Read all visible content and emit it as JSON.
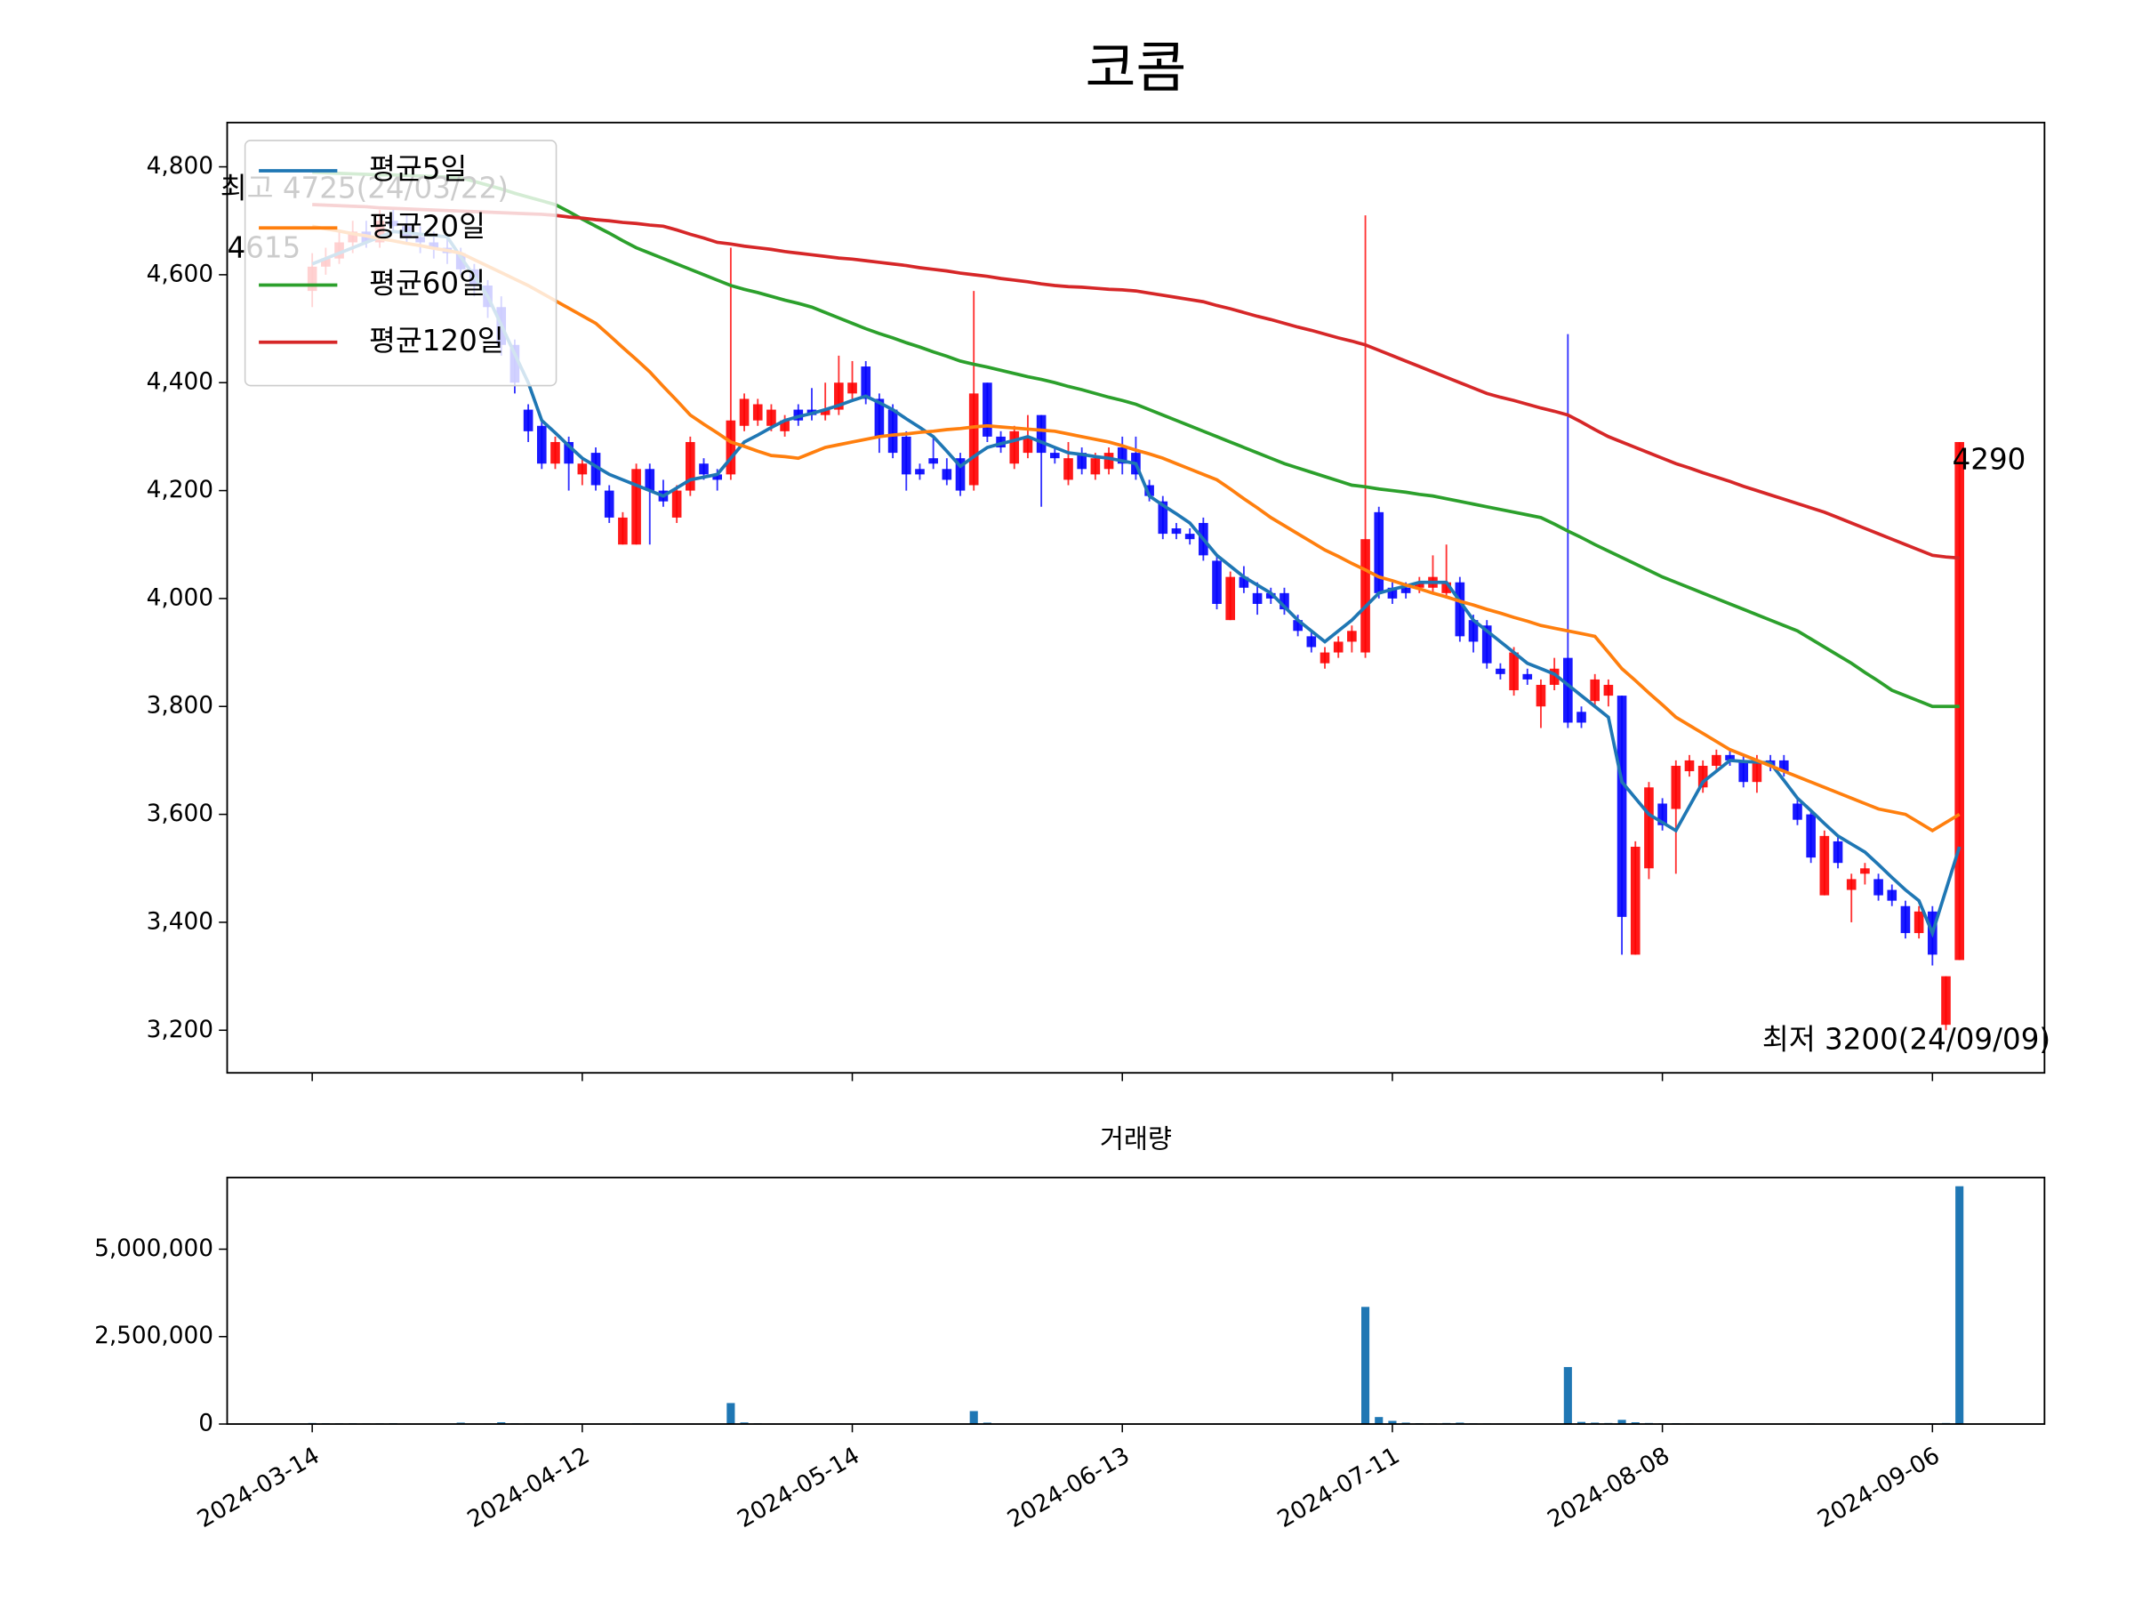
{
  "chart_data": {
    "type": "candlestick",
    "title": "코콤",
    "up_color": "#ff0000",
    "down_color": "#0000ff",
    "categories": [
      "2024-03-14",
      null,
      null,
      null,
      null,
      null,
      null,
      null,
      null,
      null,
      null,
      null,
      null,
      null,
      null,
      null,
      null,
      null,
      null,
      null,
      "2024-04-12",
      null,
      null,
      null,
      null,
      null,
      null,
      null,
      null,
      null,
      null,
      null,
      null,
      null,
      null,
      null,
      null,
      null,
      null,
      null,
      "2024-05-14",
      null,
      null,
      null,
      null,
      null,
      null,
      null,
      null,
      null,
      null,
      null,
      null,
      null,
      null,
      null,
      null,
      null,
      null,
      null,
      "2024-06-13",
      null,
      null,
      null,
      null,
      null,
      null,
      null,
      null,
      null,
      null,
      null,
      null,
      null,
      null,
      null,
      null,
      null,
      null,
      null,
      "2024-07-11",
      null,
      null,
      null,
      null,
      null,
      null,
      null,
      null,
      null,
      null,
      null,
      null,
      null,
      null,
      null,
      null,
      null,
      null,
      null,
      "2024-08-08",
      null,
      null,
      null,
      null,
      null,
      null,
      null,
      null,
      null,
      null,
      null,
      null,
      null,
      null,
      null,
      null,
      null,
      null,
      null,
      "2024-09-06",
      null,
      null
    ],
    "open": [
      4570,
      4615,
      4630,
      4660,
      4680,
      4660,
      4700,
      4690,
      4670,
      4660,
      4650,
      4640,
      4610,
      4580,
      4540,
      4470,
      4350,
      4320,
      4250,
      4290,
      4230,
      4270,
      4200,
      4100,
      4100,
      4240,
      4200,
      4150,
      4200,
      4250,
      4230,
      4230,
      4320,
      4330,
      4320,
      4310,
      4350,
      4350,
      4340,
      4350,
      4380,
      4430,
      4370,
      4350,
      4300,
      4240,
      4260,
      4240,
      4260,
      4210,
      4400,
      4300,
      4250,
      4270,
      4340,
      4270,
      4220,
      4270,
      4230,
      4240,
      4280,
      4270,
      4210,
      4180,
      4130,
      4120,
      4140,
      4070,
      3960,
      4040,
      4010,
      4010,
      4010,
      3960,
      3930,
      3880,
      3900,
      3920,
      3900,
      4160,
      4020,
      4020,
      4020,
      4020,
      4010,
      4030,
      3960,
      3950,
      3870,
      3830,
      3860,
      3800,
      3840,
      3890,
      3790,
      3810,
      3820,
      3820,
      3340,
      3500,
      3620,
      3610,
      3680,
      3650,
      3690,
      3710,
      3700,
      3660,
      3700,
      3700,
      3620,
      3600,
      3450,
      3550,
      3460,
      3490,
      3480,
      3460,
      3430,
      3380,
      3420,
      3210,
      3330
    ],
    "high": [
      4640,
      4650,
      4680,
      4700,
      4700,
      4720,
      4725,
      4710,
      4690,
      4680,
      4670,
      4650,
      4620,
      4590,
      4560,
      4480,
      4360,
      4330,
      4300,
      4300,
      4260,
      4280,
      4210,
      4160,
      4250,
      4250,
      4220,
      4210,
      4300,
      4260,
      4240,
      4650,
      4380,
      4370,
      4360,
      4340,
      4360,
      4390,
      4400,
      4450,
      4440,
      4440,
      4380,
      4360,
      4310,
      4250,
      4300,
      4260,
      4270,
      4570,
      4400,
      4310,
      4320,
      4340,
      4340,
      4280,
      4290,
      4280,
      4270,
      4280,
      4300,
      4300,
      4220,
      4190,
      4140,
      4130,
      4150,
      4080,
      4050,
      4060,
      4030,
      4020,
      4020,
      3970,
      3940,
      3910,
      3930,
      3950,
      4710,
      4170,
      4030,
      4030,
      4040,
      4080,
      4100,
      4040,
      3970,
      3960,
      3880,
      3910,
      3870,
      3850,
      3890,
      4490,
      3800,
      3860,
      3850,
      3820,
      3550,
      3660,
      3630,
      3700,
      3710,
      3700,
      3720,
      3720,
      3710,
      3710,
      3710,
      3710,
      3630,
      3610,
      3570,
      3560,
      3490,
      3510,
      3490,
      3470,
      3440,
      3430,
      3430,
      3300,
      4290
    ],
    "low": [
      4540,
      4600,
      4620,
      4640,
      4650,
      4650,
      4680,
      4660,
      4640,
      4630,
      4620,
      4600,
      4560,
      4520,
      4450,
      4380,
      4290,
      4240,
      4240,
      4200,
      4210,
      4200,
      4140,
      4100,
      4100,
      4100,
      4170,
      4140,
      4190,
      4220,
      4200,
      4220,
      4310,
      4320,
      4310,
      4300,
      4320,
      4330,
      4330,
      4340,
      4370,
      4360,
      4270,
      4260,
      4200,
      4220,
      4240,
      4210,
      4190,
      4200,
      4290,
      4270,
      4240,
      4260,
      4170,
      4250,
      4210,
      4230,
      4220,
      4230,
      4230,
      4220,
      4180,
      4110,
      4110,
      4100,
      4070,
      3980,
      3960,
      4010,
      3970,
      3990,
      3970,
      3930,
      3900,
      3870,
      3890,
      3900,
      3890,
      4000,
      3990,
      4000,
      4010,
      4010,
      4000,
      3920,
      3900,
      3870,
      3850,
      3820,
      3840,
      3760,
      3830,
      3760,
      3760,
      3800,
      3800,
      3340,
      3340,
      3480,
      3570,
      3490,
      3670,
      3640,
      3680,
      3690,
      3650,
      3640,
      3680,
      3670,
      3580,
      3510,
      3450,
      3500,
      3400,
      3470,
      3440,
      3430,
      3370,
      3370,
      3320,
      3200,
      3330
    ],
    "close": [
      4615,
      4630,
      4660,
      4680,
      4660,
      4700,
      4690,
      4670,
      4660,
      4650,
      4640,
      4610,
      4580,
      4540,
      4470,
      4400,
      4310,
      4250,
      4290,
      4250,
      4250,
      4210,
      4150,
      4150,
      4240,
      4200,
      4180,
      4200,
      4290,
      4230,
      4220,
      4330,
      4370,
      4360,
      4350,
      4330,
      4330,
      4340,
      4350,
      4400,
      4400,
      4370,
      4300,
      4270,
      4230,
      4230,
      4250,
      4220,
      4200,
      4380,
      4300,
      4280,
      4310,
      4300,
      4270,
      4260,
      4260,
      4240,
      4260,
      4270,
      4250,
      4230,
      4190,
      4120,
      4120,
      4110,
      4080,
      3990,
      4040,
      4020,
      3990,
      4000,
      3980,
      3940,
      3910,
      3900,
      3920,
      3940,
      4110,
      4010,
      4000,
      4010,
      4030,
      4040,
      4030,
      3930,
      3920,
      3880,
      3860,
      3900,
      3850,
      3840,
      3870,
      3770,
      3770,
      3850,
      3840,
      3410,
      3540,
      3650,
      3580,
      3690,
      3700,
      3690,
      3710,
      3700,
      3660,
      3700,
      3690,
      3680,
      3590,
      3520,
      3560,
      3510,
      3480,
      3500,
      3450,
      3440,
      3380,
      3420,
      3340,
      3300,
      4290
    ],
    "series": [
      {
        "name": "평균5일",
        "color": "#1f77b4",
        "values": [
          4620,
          4630,
          4640,
          4650,
          4660,
          4670,
          4680,
          4678,
          4675,
          4673,
          4670,
          4633,
          4597,
          4560,
          4507,
          4453,
          4400,
          4330,
          4307,
          4283,
          4260,
          4245,
          4230,
          4220,
          4210,
          4200,
          4190,
          4205,
          4220,
          4225,
          4230,
          4260,
          4290,
          4303,
          4317,
          4330,
          4337,
          4343,
          4350,
          4358,
          4367,
          4375,
          4363,
          4350,
          4333,
          4317,
          4300,
          4273,
          4245,
          4263,
          4280,
          4287,
          4293,
          4300,
          4290,
          4280,
          4270,
          4267,
          4263,
          4260,
          4255,
          4250,
          4190,
          4173,
          4157,
          4140,
          4110,
          4080,
          4060,
          4040,
          4025,
          4010,
          3985,
          3960,
          3940,
          3920,
          3940,
          3960,
          3985,
          4010,
          4017,
          4023,
          4030,
          4030,
          4030,
          3995,
          3960,
          3940,
          3920,
          3900,
          3880,
          3870,
          3860,
          3840,
          3820,
          3800,
          3780,
          3660,
          3630,
          3600,
          3585,
          3570,
          3615,
          3660,
          3680,
          3700,
          3698,
          3697,
          3695,
          3663,
          3630,
          3607,
          3583,
          3560,
          3545,
          3530,
          3507,
          3483,
          3460,
          3440,
          3380,
          3460,
          3540
        ]
      },
      {
        "name": "평균20일",
        "color": "#ff7f0e",
        "values": [
          4690,
          4685,
          4681,
          4676,
          4672,
          4667,
          4663,
          4658,
          4654,
          4649,
          4645,
          4640,
          4628,
          4616,
          4604,
          4592,
          4580,
          4566,
          4552,
          4538,
          4524,
          4510,
          4488,
          4465,
          4443,
          4420,
          4393,
          4367,
          4340,
          4323,
          4307,
          4290,
          4282,
          4273,
          4265,
          4263,
          4260,
          4270,
          4280,
          4285,
          4290,
          4295,
          4300,
          4303,
          4305,
          4308,
          4310,
          4313,
          4315,
          4318,
          4320,
          4318,
          4316,
          4314,
          4312,
          4310,
          4305,
          4300,
          4295,
          4290,
          4283,
          4275,
          4268,
          4260,
          4250,
          4240,
          4230,
          4220,
          4203,
          4185,
          4168,
          4150,
          4135,
          4120,
          4105,
          4090,
          4078,
          4065,
          4053,
          4040,
          4033,
          4025,
          4018,
          4010,
          4003,
          3995,
          3988,
          3980,
          3973,
          3965,
          3958,
          3950,
          3945,
          3940,
          3935,
          3930,
          3900,
          3870,
          3848,
          3825,
          3803,
          3780,
          3765,
          3750,
          3735,
          3720,
          3710,
          3700,
          3690,
          3680,
          3670,
          3660,
          3650,
          3640,
          3630,
          3620,
          3610,
          3605,
          3600,
          3585,
          3570,
          3585,
          3600
        ]
      },
      {
        "name": "평균60일",
        "color": "#2ca02c",
        "values": [
          4790,
          4789,
          4788,
          4787,
          4786,
          4785,
          4785,
          4784,
          4783,
          4782,
          4781,
          4780,
          4773,
          4766,
          4759,
          4751,
          4744,
          4737,
          4730,
          4717,
          4703,
          4690,
          4677,
          4663,
          4650,
          4640,
          4630,
          4620,
          4610,
          4600,
          4590,
          4580,
          4573,
          4567,
          4560,
          4553,
          4547,
          4540,
          4530,
          4520,
          4510,
          4500,
          4491,
          4483,
          4474,
          4466,
          4457,
          4449,
          4440,
          4434,
          4429,
          4423,
          4417,
          4411,
          4406,
          4400,
          4393,
          4387,
          4380,
          4373,
          4367,
          4360,
          4350,
          4340,
          4330,
          4320,
          4310,
          4300,
          4290,
          4280,
          4270,
          4260,
          4250,
          4242,
          4234,
          4226,
          4218,
          4210,
          4207,
          4203,
          4200,
          4197,
          4193,
          4190,
          4185,
          4180,
          4175,
          4170,
          4165,
          4160,
          4155,
          4150,
          4138,
          4125,
          4113,
          4100,
          4088,
          4076,
          4064,
          4052,
          4040,
          4030,
          4020,
          4010,
          4000,
          3990,
          3980,
          3970,
          3960,
          3950,
          3940,
          3925,
          3910,
          3895,
          3880,
          3863,
          3847,
          3830,
          3820,
          3810,
          3800,
          3800,
          3800
        ]
      },
      {
        "name": "평균120일",
        "color": "#d62728",
        "values": [
          4730,
          4729,
          4728,
          4727,
          4726,
          4724,
          4723,
          4722,
          4721,
          4720,
          4719,
          4718,
          4717,
          4716,
          4715,
          4714,
          4713,
          4712,
          4710,
          4707,
          4705,
          4702,
          4700,
          4697,
          4695,
          4692,
          4690,
          4683,
          4675,
          4668,
          4660,
          4657,
          4653,
          4650,
          4647,
          4643,
          4640,
          4637,
          4634,
          4631,
          4629,
          4626,
          4623,
          4620,
          4617,
          4613,
          4610,
          4607,
          4603,
          4600,
          4597,
          4593,
          4590,
          4587,
          4583,
          4580,
          4578,
          4577,
          4575,
          4573,
          4572,
          4570,
          4566,
          4562,
          4558,
          4554,
          4550,
          4543,
          4537,
          4530,
          4523,
          4517,
          4510,
          4503,
          4497,
          4490,
          4483,
          4477,
          4470,
          4460,
          4450,
          4440,
          4430,
          4420,
          4410,
          4400,
          4390,
          4380,
          4373,
          4367,
          4360,
          4353,
          4347,
          4340,
          4327,
          4313,
          4300,
          4290,
          4280,
          4270,
          4260,
          4250,
          4242,
          4233,
          4225,
          4217,
          4208,
          4200,
          4192,
          4184,
          4176,
          4168,
          4160,
          4150,
          4140,
          4130,
          4120,
          4110,
          4100,
          4090,
          4080,
          4077,
          4075
        ]
      }
    ],
    "ylim": [
      3121,
      4882
    ],
    "yticks": [
      {
        "value": 3200,
        "label": "3,200"
      },
      {
        "value": 3400,
        "label": "3,400"
      },
      {
        "value": 3600,
        "label": "3,600"
      },
      {
        "value": 3800,
        "label": "3,800"
      },
      {
        "value": 4000,
        "label": "4,000"
      },
      {
        "value": 4200,
        "label": "4,200"
      },
      {
        "value": 4400,
        "label": "4,400"
      },
      {
        "value": 4600,
        "label": "4,600"
      },
      {
        "value": 4800,
        "label": "4,800"
      }
    ],
    "legend": "upper left",
    "annotations": [
      {
        "text": "최고 4725(24/03/22)",
        "color": "#ff0000"
      },
      {
        "text": "4615",
        "color": "#000000"
      },
      {
        "text": "4290",
        "color": "#000000"
      },
      {
        "text": "최저 3200(24/09/09)",
        "color": "#0000ff"
      }
    ],
    "volume": {
      "title": "거래량",
      "color": "#1f77b4",
      "values": [
        30000,
        25000,
        20000,
        22000,
        18000,
        20000,
        25000,
        15000,
        14000,
        13000,
        12000,
        40000,
        15000,
        16000,
        50000,
        20000,
        18000,
        15000,
        14000,
        12000,
        12000,
        11000,
        13000,
        15000,
        20000,
        14000,
        12000,
        11000,
        15000,
        12000,
        14000,
        600000,
        45000,
        20000,
        15000,
        12000,
        11000,
        10000,
        12000,
        15000,
        13000,
        12000,
        11000,
        10000,
        12000,
        10000,
        9000,
        10000,
        12000,
        370000,
        40000,
        15000,
        12000,
        11000,
        13000,
        10000,
        9000,
        8000,
        9000,
        10000,
        9000,
        10000,
        12000,
        14000,
        10000,
        9000,
        11000,
        15000,
        14000,
        10000,
        9000,
        8000,
        9000,
        10000,
        11000,
        10000,
        9000,
        12000,
        3350000,
        200000,
        90000,
        40000,
        25000,
        20000,
        30000,
        40000,
        20000,
        18000,
        15000,
        12000,
        12000,
        14000,
        15000,
        1630000,
        60000,
        40000,
        30000,
        120000,
        50000,
        30000,
        20000,
        25000,
        18000,
        15000,
        12000,
        11000,
        10000,
        12000,
        11000,
        10000,
        14000,
        18000,
        15000,
        12000,
        12000,
        10000,
        11000,
        12000,
        15000,
        14000,
        20000,
        30000,
        6800000
      ],
      "ylim": [
        0,
        7050000
      ],
      "yticks": [
        0,
        {
          "value": 2500000,
          "label": "2,500,000"
        },
        {
          "value": 5000000,
          "label": "5,000,000"
        }
      ]
    }
  }
}
